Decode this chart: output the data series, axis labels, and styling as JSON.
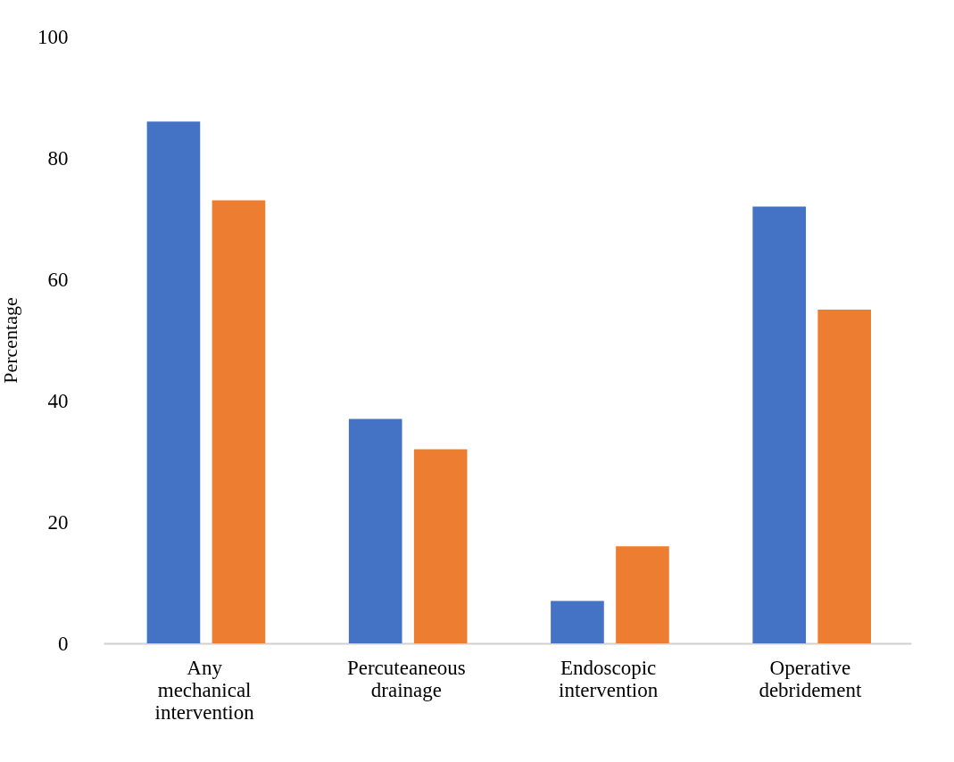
{
  "chart_data": {
    "type": "bar",
    "ylabel": "Percentage",
    "categories": [
      "Any mechanical intervention",
      "Percuteaneous drainage",
      "Endoscopic intervention",
      "Operative debridement"
    ],
    "series": [
      {
        "color": "#4472c4",
        "values": [
          86,
          37,
          7,
          72
        ]
      },
      {
        "color": "#ed7d31",
        "values": [
          73,
          32,
          16,
          55
        ]
      }
    ],
    "ylim": [
      0,
      100
    ],
    "yticks": [
      0,
      20,
      40,
      60,
      80,
      100
    ],
    "grid": false,
    "legend": false
  }
}
